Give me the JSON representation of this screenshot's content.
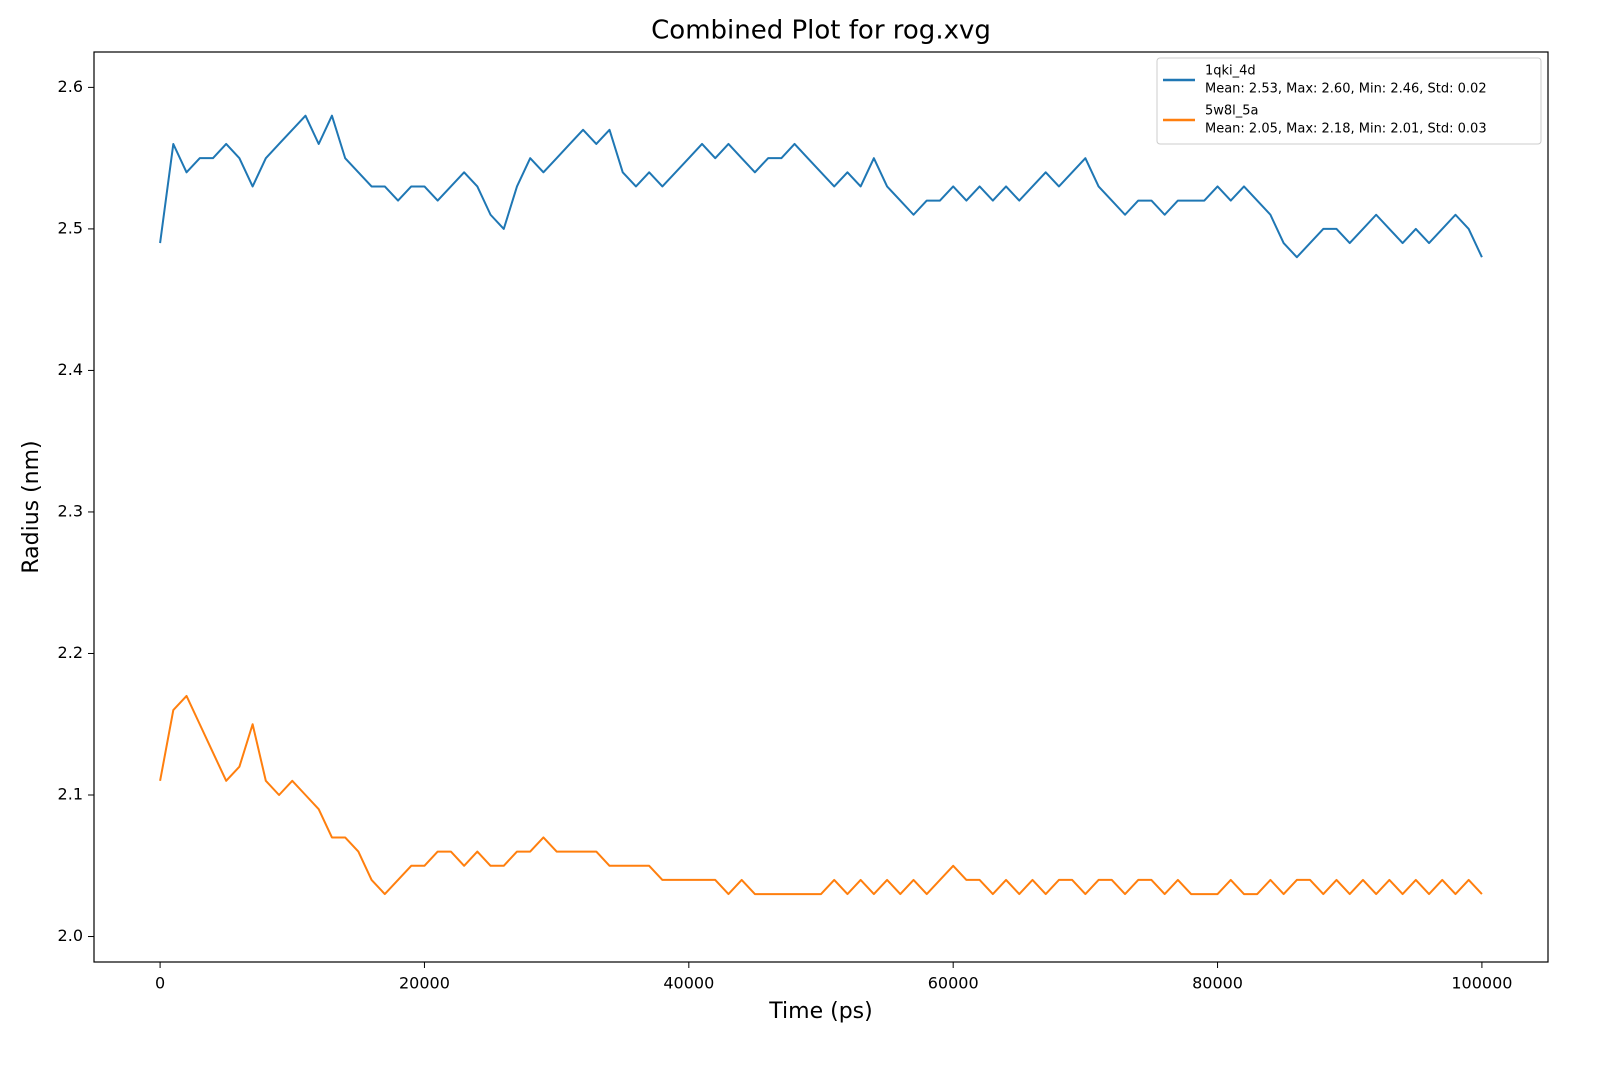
{
  "chart_data": {
    "type": "line",
    "title": "Combined Plot for rog.xvg",
    "x_label": "Time (ps)",
    "y_label": "Radius (nm)",
    "legend_position": "upper right",
    "xlim": [
      -5000,
      105000
    ],
    "xticks": [
      0,
      20000,
      40000,
      60000,
      80000,
      100000
    ],
    "ylim": [
      1.982,
      2.625
    ],
    "yticks": [
      {
        "value": 2.0,
        "label": "2.0"
      },
      2.1,
      2.2,
      2.3,
      2.4,
      2.5,
      2.6
    ],
    "x": [
      0,
      1000,
      2000,
      3000,
      4000,
      5000,
      6000,
      7000,
      8000,
      9000,
      10000,
      11000,
      12000,
      13000,
      14000,
      15000,
      16000,
      17000,
      18000,
      19000,
      20000,
      21000,
      22000,
      23000,
      24000,
      25000,
      26000,
      27000,
      28000,
      29000,
      30000,
      31000,
      32000,
      33000,
      34000,
      35000,
      36000,
      37000,
      38000,
      39000,
      40000,
      41000,
      42000,
      43000,
      44000,
      45000,
      46000,
      47000,
      48000,
      49000,
      50000,
      51000,
      52000,
      53000,
      54000,
      55000,
      56000,
      57000,
      58000,
      59000,
      60000,
      61000,
      62000,
      63000,
      64000,
      65000,
      66000,
      67000,
      68000,
      69000,
      70000,
      71000,
      72000,
      73000,
      74000,
      75000,
      76000,
      77000,
      78000,
      79000,
      80000,
      81000,
      82000,
      83000,
      84000,
      85000,
      86000,
      87000,
      88000,
      89000,
      90000,
      91000,
      92000,
      93000,
      94000,
      95000,
      96000,
      97000,
      98000,
      99000,
      100000
    ],
    "series": [
      {
        "name": "1qki_4d",
        "details": "Mean: 2.53, Max: 2.60, Min: 2.46, Std: 0.02",
        "color": "#1f77b4",
        "values": [
          2.49,
          2.56,
          2.54,
          2.55,
          2.55,
          2.56,
          2.55,
          2.53,
          2.55,
          2.56,
          2.57,
          2.58,
          2.56,
          2.58,
          2.55,
          2.54,
          2.53,
          2.53,
          2.52,
          2.53,
          2.53,
          2.52,
          2.53,
          2.54,
          2.53,
          2.51,
          2.5,
          2.53,
          2.55,
          2.54,
          2.55,
          2.56,
          2.57,
          2.56,
          2.57,
          2.54,
          2.53,
          2.54,
          2.53,
          2.54,
          2.55,
          2.56,
          2.55,
          2.56,
          2.55,
          2.54,
          2.55,
          2.55,
          2.56,
          2.55,
          2.54,
          2.53,
          2.54,
          2.53,
          2.55,
          2.53,
          2.52,
          2.51,
          2.52,
          2.52,
          2.53,
          2.52,
          2.53,
          2.52,
          2.53,
          2.52,
          2.53,
          2.54,
          2.53,
          2.54,
          2.55,
          2.53,
          2.52,
          2.51,
          2.52,
          2.52,
          2.51,
          2.52,
          2.52,
          2.52,
          2.53,
          2.52,
          2.53,
          2.52,
          2.51,
          2.49,
          2.48,
          2.49,
          2.5,
          2.5,
          2.49,
          2.5,
          2.51,
          2.5,
          2.49,
          2.5,
          2.49,
          2.5,
          2.51,
          2.5,
          2.48
        ]
      },
      {
        "name": "5w8l_5a",
        "details": "Mean: 2.05, Max: 2.18, Min: 2.01, Std: 0.03",
        "color": "#ff7f0e",
        "values": [
          2.11,
          2.16,
          2.17,
          2.15,
          2.13,
          2.11,
          2.12,
          2.15,
          2.11,
          2.1,
          2.11,
          2.1,
          2.09,
          2.07,
          2.07,
          2.06,
          2.04,
          2.03,
          2.04,
          2.05,
          2.05,
          2.06,
          2.06,
          2.05,
          2.06,
          2.05,
          2.05,
          2.06,
          2.06,
          2.07,
          2.06,
          2.06,
          2.06,
          2.06,
          2.05,
          2.05,
          2.05,
          2.05,
          2.04,
          2.04,
          2.04,
          2.04,
          2.04,
          2.03,
          2.04,
          2.03,
          2.03,
          2.03,
          2.03,
          2.03,
          2.03,
          2.04,
          2.03,
          2.04,
          2.03,
          2.04,
          2.03,
          2.04,
          2.03,
          2.04,
          2.05,
          2.04,
          2.04,
          2.03,
          2.04,
          2.03,
          2.04,
          2.03,
          2.04,
          2.04,
          2.03,
          2.04,
          2.04,
          2.03,
          2.04,
          2.04,
          2.03,
          2.04,
          2.03,
          2.03,
          2.03,
          2.04,
          2.03,
          2.03,
          2.04,
          2.03,
          2.04,
          2.04,
          2.03,
          2.04,
          2.03,
          2.04,
          2.03,
          2.04,
          2.03,
          2.04,
          2.03,
          2.04,
          2.03,
          2.04,
          2.03
        ]
      }
    ]
  }
}
